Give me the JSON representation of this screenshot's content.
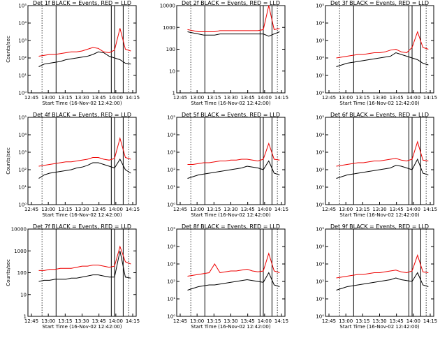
{
  "chart_data": [
    {
      "type": "line",
      "title": "Det 1f BLACK = Events, RED = LLD",
      "xlabel": "Start Time (16-Nov-02 12:42:00)",
      "ylabel": "Counts/sec",
      "yscale": "log",
      "ylim": [
        1,
        100000
      ],
      "ytick_labels": [
        "10⁰",
        "10¹",
        "10²",
        "10³",
        "10⁴",
        "10⁵"
      ],
      "xlim": [
        0,
        100
      ],
      "xtick_labels": [
        "12:45",
        "13:00",
        "13:15",
        "13:30",
        "13:45",
        "14:00",
        "14:15"
      ],
      "colors": {
        "events": "#000000",
        "lld": "#ee0000"
      },
      "events_log": [
        1.5,
        1.65,
        1.7,
        1.75,
        1.8,
        1.9,
        1.95,
        2.0,
        2.05,
        2.1,
        2.2,
        2.35,
        2.3,
        2.1,
        2.0,
        1.9,
        1.7,
        1.65
      ],
      "lld_log": [
        2.1,
        2.15,
        2.2,
        2.2,
        2.25,
        2.3,
        2.35,
        2.35,
        2.4,
        2.5,
        2.6,
        2.55,
        2.35,
        2.3,
        2.45,
        3.7,
        2.5,
        2.4
      ]
    },
    {
      "type": "line",
      "title": "Det 2f BLACK = Events, RED = LLD",
      "xlabel": "Start Time (16-Nov-02 12:42:00)",
      "ylabel": "",
      "yscale": "log",
      "ylim": [
        1,
        10000
      ],
      "ytick_labels": [
        "1",
        "10",
        "100",
        "1000",
        "10000"
      ],
      "xlim": [
        0,
        100
      ],
      "xtick_labels": [
        "12:45",
        "13:00",
        "13:15",
        "13:30",
        "13:45",
        "14:00",
        "14:15"
      ],
      "colors": {
        "events": "#000000",
        "lld": "#ee0000"
      },
      "events_log": [
        2.8,
        2.75,
        2.7,
        2.65,
        2.65,
        2.65,
        2.7,
        2.7,
        2.7,
        2.7,
        2.7,
        2.7,
        2.7,
        2.7,
        2.7,
        2.6,
        2.7,
        2.8
      ],
      "lld_log": [
        2.9,
        2.85,
        2.8,
        2.8,
        2.8,
        2.8,
        2.85,
        2.85,
        2.85,
        2.85,
        2.85,
        2.85,
        2.85,
        2.85,
        2.9,
        4.0,
        2.9,
        2.95
      ]
    },
    {
      "type": "line",
      "title": "Det 3f BLACK = Events, RED = LLD",
      "xlabel": "Start Time (16-Nov-02 12:42:00)",
      "ylabel": "",
      "yscale": "log",
      "ylim": [
        1,
        100000
      ],
      "ytick_labels": [
        "10⁰",
        "10¹",
        "10²",
        "10³",
        "10⁴",
        "10⁵"
      ],
      "xlim": [
        0,
        100
      ],
      "xtick_labels": [
        "12:45",
        "13:00",
        "13:15",
        "13:30",
        "13:45",
        "14:00",
        "14:15"
      ],
      "colors": {
        "events": "#000000",
        "lld": "#ee0000"
      },
      "events_log": [
        1.5,
        1.6,
        1.7,
        1.75,
        1.8,
        1.85,
        1.9,
        1.95,
        2.0,
        2.05,
        2.1,
        2.3,
        2.2,
        2.1,
        2.0,
        1.9,
        1.7,
        1.6
      ],
      "lld_log": [
        2.0,
        2.05,
        2.1,
        2.15,
        2.2,
        2.2,
        2.25,
        2.3,
        2.3,
        2.35,
        2.45,
        2.5,
        2.35,
        2.3,
        2.6,
        3.5,
        2.6,
        2.5
      ]
    },
    {
      "type": "line",
      "title": "Det 4f BLACK = Events, RED = LLD",
      "xlabel": "Start Time (16-Nov-02 12:42:00)",
      "ylabel": "Counts/sec",
      "yscale": "log",
      "ylim": [
        1,
        100000
      ],
      "ytick_labels": [
        "10⁰",
        "10¹",
        "10²",
        "10³",
        "10⁴",
        "10⁵"
      ],
      "xlim": [
        0,
        100
      ],
      "xtick_labels": [
        "12:45",
        "13:00",
        "13:15",
        "13:30",
        "13:45",
        "14:00",
        "14:15"
      ],
      "colors": {
        "events": "#000000",
        "lld": "#ee0000"
      },
      "events_log": [
        1.5,
        1.7,
        1.8,
        1.85,
        1.9,
        1.95,
        2.0,
        2.1,
        2.15,
        2.25,
        2.4,
        2.4,
        2.3,
        2.2,
        2.1,
        2.6,
        2.0,
        1.8
      ],
      "lld_log": [
        2.2,
        2.25,
        2.3,
        2.35,
        2.4,
        2.45,
        2.45,
        2.5,
        2.55,
        2.6,
        2.7,
        2.7,
        2.6,
        2.55,
        2.65,
        3.8,
        2.7,
        2.6
      ]
    },
    {
      "type": "line",
      "title": "Det 5f BLACK = Events, RED = LLD",
      "xlabel": "Start Time (16-Nov-02 12:42:00)",
      "ylabel": "",
      "yscale": "log",
      "ylim": [
        1,
        100000
      ],
      "ytick_labels": [
        "10⁰",
        "10¹",
        "10²",
        "10³",
        "10⁴",
        "10⁵"
      ],
      "xlim": [
        0,
        100
      ],
      "xtick_labels": [
        "12:45",
        "13:00",
        "13:15",
        "13:30",
        "13:45",
        "14:00",
        "14:15"
      ],
      "colors": {
        "events": "#000000",
        "lld": "#ee0000"
      },
      "events_log": [
        1.5,
        1.6,
        1.7,
        1.75,
        1.8,
        1.85,
        1.9,
        1.95,
        2.0,
        2.05,
        2.1,
        2.2,
        2.15,
        2.1,
        2.0,
        2.5,
        1.8,
        1.7
      ],
      "lld_log": [
        2.3,
        2.3,
        2.35,
        2.4,
        2.4,
        2.45,
        2.5,
        2.5,
        2.55,
        2.55,
        2.6,
        2.6,
        2.55,
        2.5,
        2.6,
        3.5,
        2.6,
        2.55
      ]
    },
    {
      "type": "line",
      "title": "Det 6f BLACK = Events, RED = LLD",
      "xlabel": "Start Time (16-Nov-02 12:42:00)",
      "ylabel": "",
      "yscale": "log",
      "ylim": [
        1,
        100000
      ],
      "ytick_labels": [
        "10⁰",
        "10¹",
        "10²",
        "10³",
        "10⁴",
        "10⁵"
      ],
      "xlim": [
        0,
        100
      ],
      "xtick_labels": [
        "12:45",
        "13:00",
        "13:15",
        "13:30",
        "13:45",
        "14:00",
        "14:15"
      ],
      "colors": {
        "events": "#000000",
        "lld": "#ee0000"
      },
      "events_log": [
        1.5,
        1.6,
        1.7,
        1.75,
        1.8,
        1.85,
        1.9,
        1.95,
        2.0,
        2.05,
        2.1,
        2.25,
        2.2,
        2.1,
        2.0,
        2.6,
        1.8,
        1.7
      ],
      "lld_log": [
        2.2,
        2.25,
        2.3,
        2.35,
        2.4,
        2.4,
        2.45,
        2.5,
        2.5,
        2.55,
        2.6,
        2.65,
        2.55,
        2.5,
        2.6,
        3.6,
        2.55,
        2.5
      ]
    },
    {
      "type": "line",
      "title": "Det 7f BLACK = Events, RED = LLD",
      "xlabel": "Start Time (16-Nov-02 12:42:00)",
      "ylabel": "Counts/sec",
      "yscale": "log",
      "ylim": [
        1,
        10000
      ],
      "ytick_labels": [
        "1",
        "10",
        "100",
        "1000",
        "10000"
      ],
      "xlim": [
        0,
        100
      ],
      "xtick_labels": [
        "12:45",
        "13:00",
        "13:15",
        "13:30",
        "13:45",
        "14:00",
        "14:15"
      ],
      "colors": {
        "events": "#000000",
        "lld": "#ee0000"
      },
      "events_log": [
        1.6,
        1.65,
        1.65,
        1.7,
        1.7,
        1.7,
        1.75,
        1.75,
        1.8,
        1.85,
        1.9,
        1.9,
        1.85,
        1.8,
        1.8,
        3.0,
        1.8,
        1.75
      ],
      "lld_log": [
        2.1,
        2.1,
        2.15,
        2.15,
        2.2,
        2.2,
        2.2,
        2.25,
        2.3,
        2.3,
        2.35,
        2.35,
        2.3,
        2.25,
        2.3,
        3.2,
        2.5,
        2.4
      ]
    },
    {
      "type": "line",
      "title": "Det 8f BLACK = Events, RED = LLD",
      "xlabel": "Start Time (16-Nov-02 12:42:00)",
      "ylabel": "",
      "yscale": "log",
      "ylim": [
        1,
        100000
      ],
      "ytick_labels": [
        "10⁰",
        "10¹",
        "10²",
        "10³",
        "10⁴",
        "10⁵"
      ],
      "xlim": [
        0,
        100
      ],
      "xtick_labels": [
        "12:45",
        "13:00",
        "13:15",
        "13:30",
        "13:45",
        "14:00",
        "14:15"
      ],
      "colors": {
        "events": "#000000",
        "lld": "#ee0000"
      },
      "events_log": [
        1.5,
        1.6,
        1.7,
        1.75,
        1.8,
        1.8,
        1.85,
        1.9,
        1.95,
        2.0,
        2.05,
        2.1,
        2.05,
        2.0,
        1.95,
        2.5,
        1.8,
        1.7
      ],
      "lld_log": [
        2.3,
        2.35,
        2.4,
        2.45,
        2.5,
        3.0,
        2.5,
        2.55,
        2.6,
        2.6,
        2.65,
        2.7,
        2.6,
        2.55,
        2.6,
        3.6,
        2.6,
        2.5
      ]
    },
    {
      "type": "line",
      "title": "Det 9f BLACK = Events, RED = LLD",
      "xlabel": "Start Time (16-Nov-02 12:42:00)",
      "ylabel": "",
      "yscale": "log",
      "ylim": [
        1,
        100000
      ],
      "ytick_labels": [
        "10⁰",
        "10¹",
        "10²",
        "10³",
        "10⁴",
        "10⁵"
      ],
      "xlim": [
        0,
        100
      ],
      "xtick_labels": [
        "12:45",
        "13:00",
        "13:15",
        "13:30",
        "13:45",
        "14:00",
        "14:15"
      ],
      "colors": {
        "events": "#000000",
        "lld": "#ee0000"
      },
      "events_log": [
        1.5,
        1.6,
        1.7,
        1.75,
        1.8,
        1.85,
        1.9,
        1.95,
        2.0,
        2.05,
        2.1,
        2.2,
        2.1,
        2.05,
        2.0,
        2.5,
        1.8,
        1.7
      ],
      "lld_log": [
        2.2,
        2.25,
        2.3,
        2.35,
        2.4,
        2.4,
        2.45,
        2.5,
        2.5,
        2.55,
        2.6,
        2.65,
        2.55,
        2.5,
        2.6,
        3.5,
        2.55,
        2.5
      ]
    }
  ]
}
